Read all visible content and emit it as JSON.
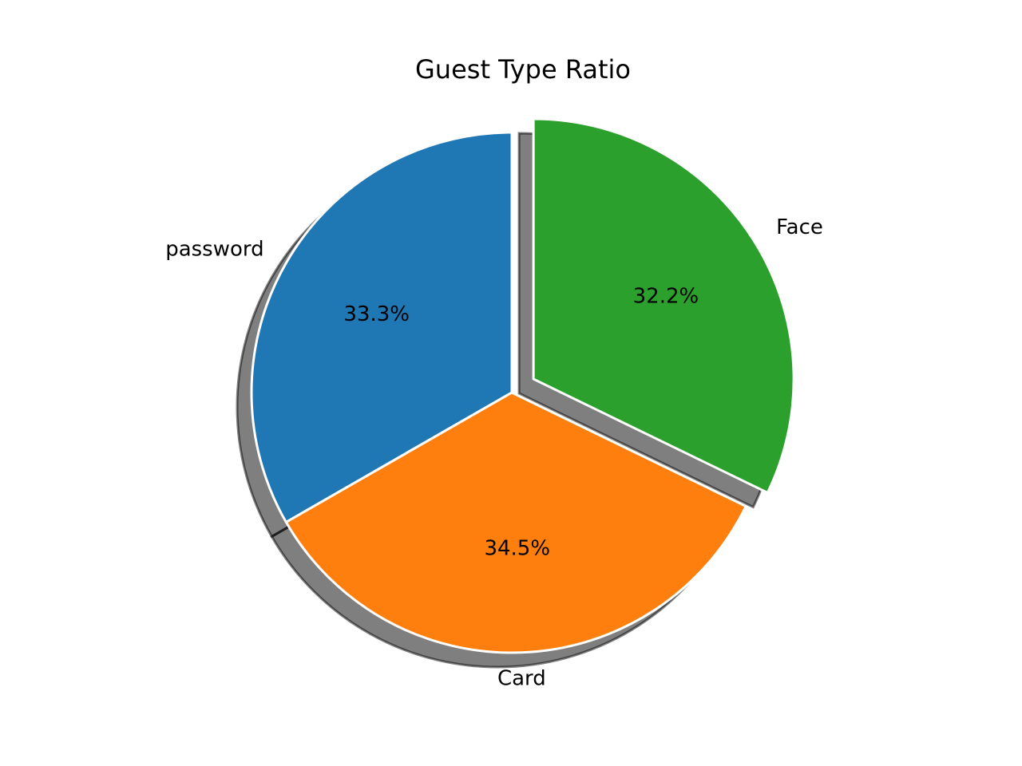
{
  "chart_data": {
    "type": "pie",
    "title": "Guest Type Ratio",
    "start_angle_deg": 90,
    "direction": "counterclockwise",
    "shadow": true,
    "slices": [
      {
        "label": "password",
        "value": 33.3,
        "percent_text": "33.3%",
        "color": "#1f77b4",
        "exploded": false
      },
      {
        "label": "Card",
        "value": 34.5,
        "percent_text": "34.5%",
        "color": "#ff7f0e",
        "exploded": false
      },
      {
        "label": "Face",
        "value": 32.2,
        "percent_text": "32.2%",
        "color": "#2ca02c",
        "exploded": true
      }
    ]
  }
}
